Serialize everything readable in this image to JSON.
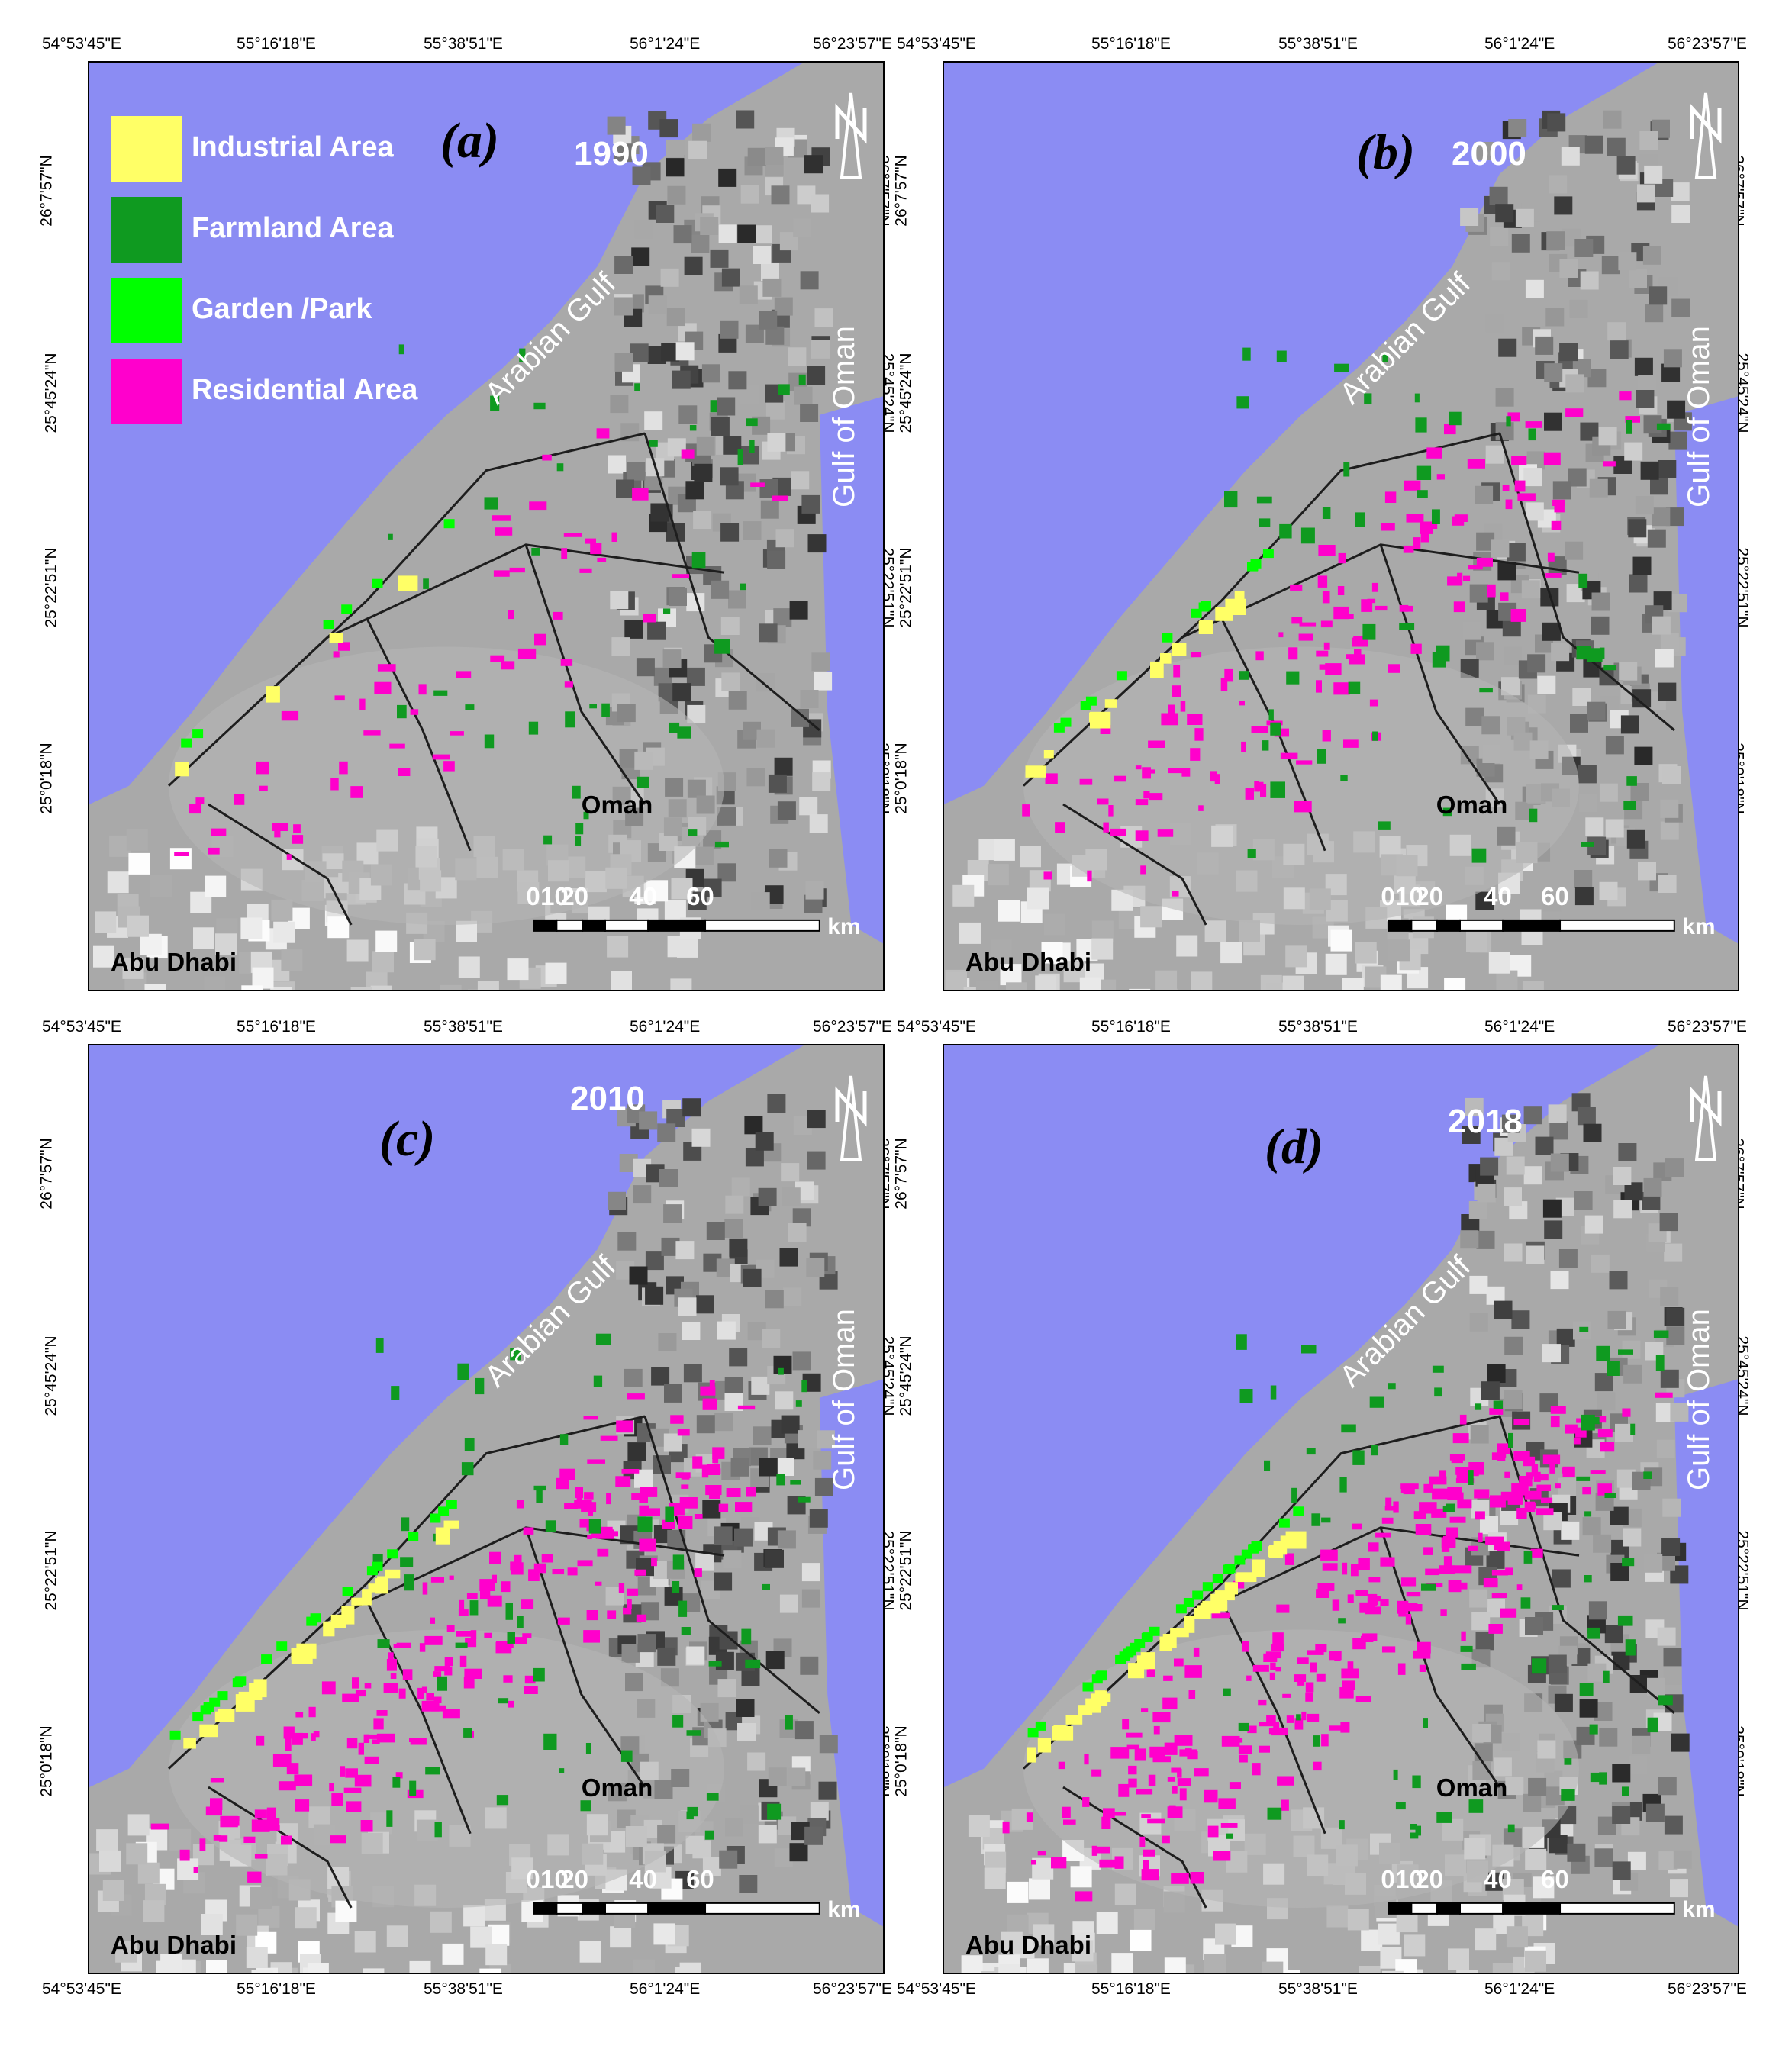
{
  "legend": {
    "items": [
      {
        "label": "Industrial Area",
        "color": "#ffff66"
      },
      {
        "label": "Farmland Area",
        "color": "#0f9a20"
      },
      {
        "label": "Garden /Park",
        "color": "#00ff00"
      },
      {
        "label": "Residential Area",
        "color": "#ff00cc"
      }
    ]
  },
  "colors": {
    "sea": "#8b8cf3",
    "land": "#a9a9a9",
    "road": "#1e1e1e",
    "north_arrow": "#ffffff"
  },
  "labels": {
    "arabian_gulf": "Arabian Gulf",
    "gulf_of_oman": "Gulf of Oman",
    "oman": "Oman",
    "abu_dhabi": "Abu Dhabi",
    "km": "km"
  },
  "scale_bar": [
    "0",
    "10",
    "20",
    "40",
    "60"
  ],
  "panels": [
    {
      "letter": "(a)",
      "year": "1990",
      "top_ticks": [
        "54°53'45\"E",
        "55°16'18\"E",
        "55°38'51\"E",
        "56°1'24\"E",
        "56°23'57\"E"
      ],
      "left_ticks": [
        "26°7'57\"N",
        "25°45'24\"N",
        "25°22'51\"N",
        "25°0'18\"N"
      ],
      "right_ticks": [
        "26°7'57\"N",
        "25°45'24\"N",
        "25°22'51\"N",
        "25°0'18\"N"
      ],
      "bottom_ticks": []
    },
    {
      "letter": "(b)",
      "year": "2000",
      "top_ticks": [
        "54°53'45\"E",
        "55°16'18\"E",
        "55°38'51\"E",
        "56°1'24\"E",
        "56°23'57\"E"
      ],
      "left_ticks": [
        "26°7'57\"N",
        "25°45'24\"N",
        "25°22'51\"N",
        "25°0'18\"N"
      ],
      "right_ticks": [
        "26°7'57\"N",
        "25°45'24\"N",
        "25°22'51\"N",
        "25°0'18\"N"
      ],
      "bottom_ticks": []
    },
    {
      "letter": "(c)",
      "year": "2010",
      "top_ticks": [
        "54°53'45\"E",
        "55°16'18\"E",
        "55°38'51\"E",
        "56°1'24\"E",
        "56°23'57\"E"
      ],
      "left_ticks": [
        "26°7'57\"N",
        "25°45'24\"N",
        "25°22'51\"N",
        "25°0'18\"N"
      ],
      "right_ticks": [
        "26°7'57\"N",
        "25°45'24\"N",
        "25°22'51\"N",
        "25°0'18\"N"
      ],
      "bottom_ticks": [
        "54°53'45\"E",
        "55°16'18\"E",
        "55°38'51\"E",
        "56°1'24\"E",
        "56°23'57\"E"
      ]
    },
    {
      "letter": "(d)",
      "year": "2018",
      "top_ticks": [
        "54°53'45\"E",
        "55°16'18\"E",
        "55°38'51\"E",
        "56°1'24\"E",
        "56°23'57\"E"
      ],
      "left_ticks": [
        "26°7'57\"N",
        "25°45'24\"N",
        "25°22'51\"N",
        "25°0'18\"N"
      ],
      "right_ticks": [
        "26°7'57\"N",
        "25°45'24\"N",
        "25°22'51\"N",
        "25°0'18\"N"
      ],
      "bottom_ticks": [
        "54°53'45\"E",
        "55°16'18\"E",
        "55°38'51\"E",
        "56°1'24\"E",
        "56°23'57\"E"
      ]
    }
  ]
}
